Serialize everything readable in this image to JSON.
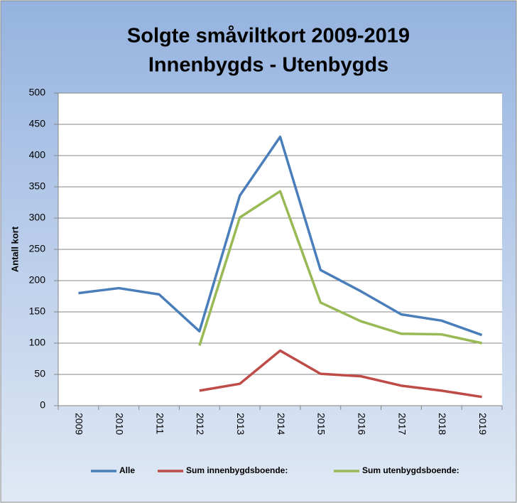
{
  "chart_data": {
    "type": "line",
    "title": "Solgte småviltkort 2009-2019",
    "subtitle": "Innenbygds - Utenbygds",
    "y_label": "Antall kort",
    "categories": [
      "2009",
      "2010",
      "2011",
      "2012",
      "2013",
      "2014",
      "2015",
      "2016",
      "2017",
      "2018",
      "2019"
    ],
    "series": [
      {
        "name": "Alle",
        "color": "#4a7ebb",
        "values": [
          180,
          188,
          178,
          119,
          336,
          430,
          217,
          183,
          146,
          136,
          113
        ]
      },
      {
        "name": "Sum innenbygdsboende:",
        "color": "#be4b48",
        "values": [
          null,
          null,
          null,
          24,
          35,
          88,
          51,
          47,
          32,
          24,
          14
        ]
      },
      {
        "name": "Sum utenbygdsboende:",
        "color": "#98b954",
        "values": [
          null,
          null,
          null,
          96,
          301,
          343,
          165,
          135,
          115,
          114,
          100
        ]
      }
    ],
    "ylim": [
      0,
      500
    ],
    "yticks": [
      0,
      50,
      100,
      150,
      200,
      250,
      300,
      350,
      400,
      450,
      500
    ],
    "grid": true,
    "legend": "bottom"
  }
}
